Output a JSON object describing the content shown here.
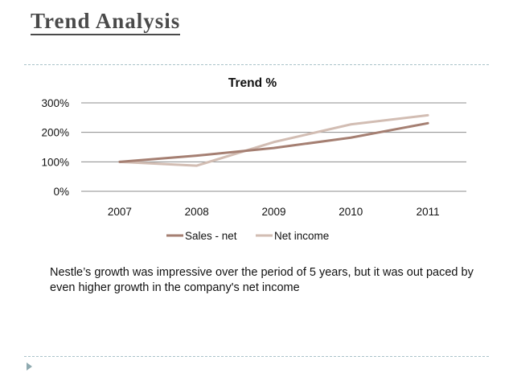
{
  "slide": {
    "title": "Trend Analysis",
    "caption": "Nestle’s growth was impressive over the period of 5 years, but it was out paced by even higher growth in the company's net income"
  },
  "chart_data": {
    "type": "line",
    "title": "Trend %",
    "categories": [
      "2007",
      "2008",
      "2009",
      "2010",
      "2011"
    ],
    "series": [
      {
        "name": "Sales - net",
        "color": "#a57f72",
        "values": [
          100,
          121,
          147,
          182,
          231
        ]
      },
      {
        "name": "Net income",
        "color": "#d2bdb3",
        "values": [
          100,
          87,
          167,
          227,
          258
        ]
      }
    ],
    "ylim": [
      0,
      300
    ],
    "yticks": [
      0,
      100,
      200,
      300
    ],
    "ytick_labels": [
      "0%",
      "100%",
      "200%",
      "300%"
    ],
    "grid": true,
    "legend": "bottom",
    "xlabel": "",
    "ylabel": ""
  },
  "colors": {
    "gridline": "#8c8c8c",
    "divider": "#a9c3c9",
    "bullet": "#8faab0"
  },
  "icons": {
    "bullet": "triangle-bullet-icon"
  }
}
